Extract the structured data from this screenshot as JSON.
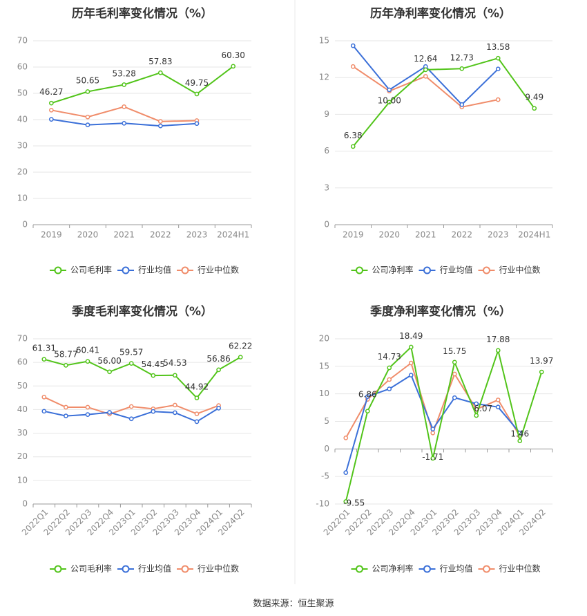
{
  "source_label": "数据来源：恒生聚源",
  "colors": {
    "company": "#52c41a",
    "avg": "#3a6fd8",
    "median": "#f08c6a",
    "divider": "#e8e8e8"
  },
  "chart_data": [
    {
      "type": "line",
      "title": "历年毛利率变化情况（%）",
      "categories": [
        "2019",
        "2020",
        "2021",
        "2022",
        "2023",
        "2024H1"
      ],
      "ylim": [
        0,
        70
      ],
      "yticks": [
        0,
        10,
        20,
        30,
        40,
        50,
        60,
        70
      ],
      "rotate_x_labels": false,
      "series": [
        {
          "name": "公司毛利率",
          "color_key": "company",
          "show_labels": true,
          "values": [
            46.27,
            50.65,
            53.28,
            57.83,
            49.75,
            60.3
          ],
          "labels": [
            "46.27",
            "50.65",
            "53.28",
            "57.83",
            "49.75",
            "60.30"
          ]
        },
        {
          "name": "行业均值",
          "color_key": "avg",
          "show_labels": false,
          "values": [
            40.1,
            38.0,
            38.6,
            37.6,
            38.5,
            null
          ]
        },
        {
          "name": "行业中位数",
          "color_key": "median",
          "show_labels": false,
          "values": [
            43.6,
            41.0,
            44.9,
            39.3,
            39.6,
            null
          ]
        }
      ],
      "legend": "bottom"
    },
    {
      "type": "line",
      "title": "历年净利率变化情况（%）",
      "categories": [
        "2019",
        "2020",
        "2021",
        "2022",
        "2023",
        "2024H1"
      ],
      "ylim": [
        0,
        15
      ],
      "yticks": [
        0,
        3,
        6,
        9,
        12,
        15
      ],
      "rotate_x_labels": false,
      "series": [
        {
          "name": "公司净利率",
          "color_key": "company",
          "show_labels": true,
          "values": [
            6.38,
            10.0,
            12.64,
            12.73,
            13.58,
            9.49
          ],
          "labels": [
            "6.38",
            "10.00",
            "12.64",
            "12.73",
            "13.58",
            "9.49"
          ]
        },
        {
          "name": "行业均值",
          "color_key": "avg",
          "show_labels": false,
          "values": [
            14.6,
            11.0,
            12.9,
            9.8,
            12.7,
            null
          ]
        },
        {
          "name": "行业中位数",
          "color_key": "median",
          "show_labels": false,
          "values": [
            12.9,
            10.9,
            12.1,
            9.6,
            10.2,
            null
          ]
        }
      ],
      "legend": "bottom"
    },
    {
      "type": "line",
      "title": "季度毛利率变化情况（%）",
      "categories": [
        "2022Q1",
        "2022Q2",
        "2022Q3",
        "2022Q4",
        "2023Q1",
        "2023Q2",
        "2023Q3",
        "2023Q4",
        "2024Q1",
        "2024Q2"
      ],
      "ylim": [
        0,
        70
      ],
      "yticks": [
        0,
        10,
        20,
        30,
        40,
        50,
        60,
        70
      ],
      "rotate_x_labels": true,
      "series": [
        {
          "name": "公司毛利率",
          "color_key": "company",
          "show_labels": true,
          "values": [
            61.31,
            58.77,
            60.41,
            56.0,
            59.57,
            54.45,
            54.53,
            44.92,
            56.86,
            62.22
          ],
          "labels": [
            "61.31",
            "58.77",
            "60.41",
            "56.00",
            "59.57",
            "54.45",
            "54.53",
            "44.92",
            "56.86",
            "62.22"
          ]
        },
        {
          "name": "行业均值",
          "color_key": "avg",
          "show_labels": false,
          "values": [
            39.3,
            37.3,
            37.9,
            38.8,
            36.1,
            39.2,
            38.7,
            34.9,
            40.6,
            null
          ]
        },
        {
          "name": "行业中位数",
          "color_key": "median",
          "show_labels": false,
          "values": [
            45.3,
            41.0,
            41.0,
            38.1,
            41.3,
            40.3,
            41.9,
            38.2,
            41.7,
            null
          ]
        }
      ],
      "legend": "bottom"
    },
    {
      "type": "line",
      "title": "季度净利率变化情况（%）",
      "categories": [
        "2022Q1",
        "2022Q2",
        "2022Q3",
        "2022Q4",
        "2023Q1",
        "2023Q2",
        "2023Q3",
        "2023Q4",
        "2024Q1",
        "2024Q2"
      ],
      "ylim": [
        -10,
        20
      ],
      "yticks": [
        -10,
        -5,
        0,
        5,
        10,
        15,
        20
      ],
      "rotate_x_labels": true,
      "zero_axis": true,
      "series": [
        {
          "name": "公司净利率",
          "color_key": "company",
          "show_labels": true,
          "values": [
            -9.55,
            6.86,
            14.73,
            18.49,
            -1.71,
            15.75,
            6.07,
            17.88,
            1.46,
            13.97
          ],
          "labels": [
            "-9.55",
            "6.86",
            "14.73",
            "18.49",
            "-1.71",
            "15.75",
            "6.07",
            "17.88",
            "1.46",
            "13.97"
          ]
        },
        {
          "name": "行业均值",
          "color_key": "avg",
          "show_labels": false,
          "values": [
            -4.3,
            9.5,
            10.9,
            13.4,
            3.6,
            9.3,
            8.2,
            7.6,
            2.9,
            null
          ]
        },
        {
          "name": "行业中位数",
          "color_key": "median",
          "show_labels": false,
          "values": [
            2.0,
            9.0,
            12.6,
            15.6,
            2.9,
            13.6,
            7.2,
            8.9,
            2.3,
            null
          ]
        }
      ],
      "legend": "bottom"
    }
  ]
}
